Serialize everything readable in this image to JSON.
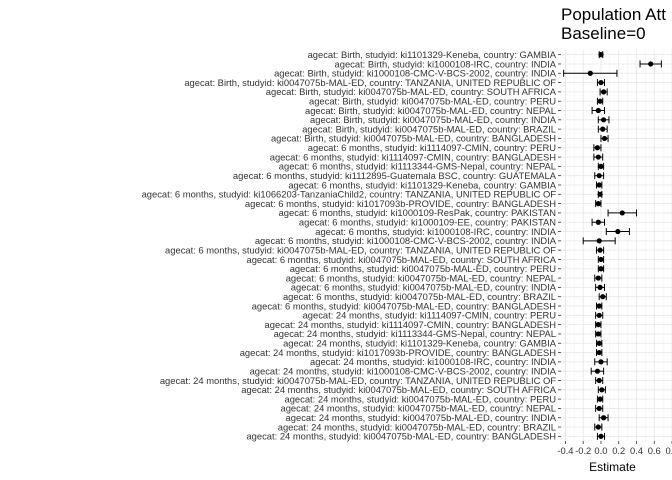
{
  "chart_data": {
    "type": "scatter",
    "title_lines": [
      "Population Att",
      "Baseline=0"
    ],
    "xlabel": "Estimate",
    "xlim": [
      -0.45,
      0.8
    ],
    "xticks": [
      -0.4,
      -0.2,
      0.0,
      0.2,
      0.4,
      0.6,
      0.8
    ],
    "xtick_labels": [
      "-0.4",
      "-0.2",
      "0.0",
      "0.2",
      "0.4",
      "0.6",
      "0.8"
    ],
    "grid": true,
    "rows": [
      {
        "label": "agecat: Birth, studyid: ki1101329-Keneba, country: GAMBIA",
        "estimate": 0.0,
        "lower": -0.02,
        "upper": 0.02
      },
      {
        "label": "agecat: Birth, studyid: ki1000108-IRC, country: INDIA",
        "estimate": 0.56,
        "lower": 0.44,
        "upper": 0.68
      },
      {
        "label": "agecat: Birth, studyid: ki1000108-CMC-V-BCS-2002, country: INDIA",
        "estimate": -0.12,
        "lower": -0.42,
        "upper": 0.18
      },
      {
        "label": "agecat: Birth, studyid: ki0047075b-MAL-ED, country: TANZANIA, UNITED REPUBLIC OF",
        "estimate": 0.0,
        "lower": -0.04,
        "upper": 0.04
      },
      {
        "label": "agecat: Birth, studyid: ki0047075b-MAL-ED, country: SOUTH AFRICA",
        "estimate": 0.03,
        "lower": -0.01,
        "upper": 0.07
      },
      {
        "label": "agecat: Birth, studyid: ki0047075b-MAL-ED, country: PERU",
        "estimate": -0.01,
        "lower": -0.04,
        "upper": 0.02
      },
      {
        "label": "agecat: Birth, studyid: ki0047075b-MAL-ED, country: NEPAL",
        "estimate": -0.03,
        "lower": -0.1,
        "upper": 0.04
      },
      {
        "label": "agecat: Birth, studyid: ki0047075b-MAL-ED, country: INDIA",
        "estimate": 0.03,
        "lower": -0.03,
        "upper": 0.09
      },
      {
        "label": "agecat: Birth, studyid: ki0047075b-MAL-ED, country: BRAZIL",
        "estimate": 0.02,
        "lower": -0.03,
        "upper": 0.07
      },
      {
        "label": "agecat: Birth, studyid: ki0047075b-MAL-ED, country: BANGLADESH",
        "estimate": 0.04,
        "lower": 0.0,
        "upper": 0.08
      },
      {
        "label": "agecat: 6 months, studyid: ki1114097-CMIN, country: PERU",
        "estimate": -0.04,
        "lower": -0.08,
        "upper": 0.0
      },
      {
        "label": "agecat: 6 months, studyid: ki1114097-CMIN, country: BANGLADESH",
        "estimate": -0.03,
        "lower": -0.08,
        "upper": 0.02
      },
      {
        "label": "agecat: 6 months, studyid: ki1113344-GMS-Nepal, country: NEPAL",
        "estimate": 0.0,
        "lower": -0.03,
        "upper": 0.03
      },
      {
        "label": "agecat: 6 months, studyid: ki1112895-Guatemala BSC, country: GUATEMALA",
        "estimate": -0.02,
        "lower": -0.07,
        "upper": 0.03
      },
      {
        "label": "agecat: 6 months, studyid: ki1101329-Keneba, country: GAMBIA",
        "estimate": -0.02,
        "lower": -0.05,
        "upper": 0.01
      },
      {
        "label": "agecat: 6 months, studyid: ki1066203-TanzaniaChild2, country: TANZANIA, UNITED REPUBLIC OF",
        "estimate": -0.01,
        "lower": -0.03,
        "upper": 0.01
      },
      {
        "label": "agecat: 6 months, studyid: ki1017093b-PROVIDE, country: BANGLADESH",
        "estimate": -0.03,
        "lower": -0.06,
        "upper": 0.0
      },
      {
        "label": "agecat: 6 months, studyid: ki1000109-ResPak, country: PAKISTAN",
        "estimate": 0.24,
        "lower": 0.08,
        "upper": 0.4
      },
      {
        "label": "agecat: 6 months, studyid: ki1000109-EE, country: PAKISTAN",
        "estimate": -0.03,
        "lower": -0.1,
        "upper": 0.04
      },
      {
        "label": "agecat: 6 months, studyid: ki1000108-IRC, country: INDIA",
        "estimate": 0.19,
        "lower": 0.06,
        "upper": 0.32
      },
      {
        "label": "agecat: 6 months, studyid: ki1000108-CMC-V-BCS-2002, country: INDIA",
        "estimate": -0.02,
        "lower": -0.2,
        "upper": 0.16
      },
      {
        "label": "agecat: 6 months, studyid: ki0047075b-MAL-ED, country: TANZANIA, UNITED REPUBLIC OF",
        "estimate": -0.01,
        "lower": -0.05,
        "upper": 0.03
      },
      {
        "label": "agecat: 6 months, studyid: ki0047075b-MAL-ED, country: SOUTH AFRICA",
        "estimate": 0.0,
        "lower": -0.03,
        "upper": 0.03
      },
      {
        "label": "agecat: 6 months, studyid: ki0047075b-MAL-ED, country: PERU",
        "estimate": 0.0,
        "lower": -0.03,
        "upper": 0.03
      },
      {
        "label": "agecat: 6 months, studyid: ki0047075b-MAL-ED, country: NEPAL",
        "estimate": -0.03,
        "lower": -0.07,
        "upper": 0.01
      },
      {
        "label": "agecat: 6 months, studyid: ki0047075b-MAL-ED, country: INDIA",
        "estimate": -0.01,
        "lower": -0.06,
        "upper": 0.04
      },
      {
        "label": "agecat: 6 months, studyid: ki0047075b-MAL-ED, country: BRAZIL",
        "estimate": 0.02,
        "lower": -0.02,
        "upper": 0.06
      },
      {
        "label": "agecat: 6 months, studyid: ki0047075b-MAL-ED, country: BANGLADESH",
        "estimate": -0.02,
        "lower": -0.05,
        "upper": 0.01
      },
      {
        "label": "agecat: 24 months, studyid: ki1114097-CMIN, country: PERU",
        "estimate": -0.02,
        "lower": -0.06,
        "upper": 0.02
      },
      {
        "label": "agecat: 24 months, studyid: ki1114097-CMIN, country: BANGLADESH",
        "estimate": -0.03,
        "lower": -0.06,
        "upper": 0.0
      },
      {
        "label": "agecat: 24 months, studyid: ki1113344-GMS-Nepal, country: NEPAL",
        "estimate": -0.03,
        "lower": -0.06,
        "upper": 0.0
      },
      {
        "label": "agecat: 24 months, studyid: ki1101329-Keneba, country: GAMBIA",
        "estimate": -0.02,
        "lower": -0.05,
        "upper": 0.01
      },
      {
        "label": "agecat: 24 months, studyid: ki1017093b-PROVIDE, country: BANGLADESH",
        "estimate": -0.02,
        "lower": -0.05,
        "upper": 0.01
      },
      {
        "label": "agecat: 24 months, studyid: ki1000108-IRC, country: INDIA",
        "estimate": 0.0,
        "lower": -0.07,
        "upper": 0.07
      },
      {
        "label": "agecat: 24 months, studyid: ki1000108-CMC-V-BCS-2002, country: INDIA",
        "estimate": -0.04,
        "lower": -0.11,
        "upper": 0.03
      },
      {
        "label": "agecat: 24 months, studyid: ki0047075b-MAL-ED, country: TANZANIA, UNITED REPUBLIC OF",
        "estimate": -0.02,
        "lower": -0.06,
        "upper": 0.02
      },
      {
        "label": "agecat: 24 months, studyid: ki0047075b-MAL-ED, country: SOUTH AFRICA",
        "estimate": 0.01,
        "lower": -0.03,
        "upper": 0.05
      },
      {
        "label": "agecat: 24 months, studyid: ki0047075b-MAL-ED, country: PERU",
        "estimate": -0.01,
        "lower": -0.04,
        "upper": 0.02
      },
      {
        "label": "agecat: 24 months, studyid: ki0047075b-MAL-ED, country: NEPAL",
        "estimate": -0.02,
        "lower": -0.06,
        "upper": 0.02
      },
      {
        "label": "agecat: 24 months, studyid: ki0047075b-MAL-ED, country: INDIA",
        "estimate": 0.03,
        "lower": -0.02,
        "upper": 0.08
      },
      {
        "label": "agecat: 24 months, studyid: ki0047075b-MAL-ED, country: BRAZIL",
        "estimate": -0.03,
        "lower": -0.07,
        "upper": 0.01
      },
      {
        "label": "agecat: 24 months, studyid: ki0047075b-MAL-ED, country: BANGLADESH",
        "estimate": 0.0,
        "lower": -0.04,
        "upper": 0.04
      }
    ]
  }
}
